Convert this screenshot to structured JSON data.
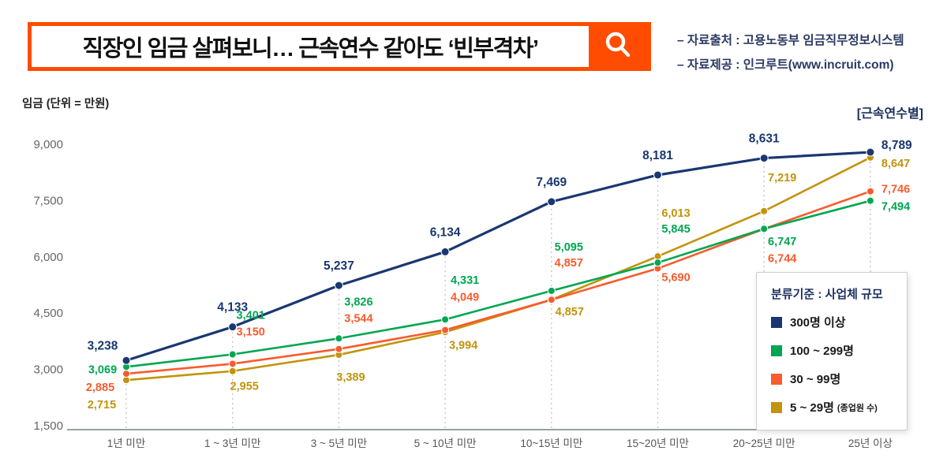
{
  "header": {
    "title": "직장인 임금 살펴보니… 근속연수 같아도 ‘빈부격차’",
    "accent_color": "#ff4c00",
    "sources": {
      "line1": "– 자료출처 : 고용노동부 임금직무정보시스템",
      "line2": "– 자료제공 : 인크루트(www.incruit.com)"
    }
  },
  "chart": {
    "y_axis_label": "임금 (단위 = 만원)",
    "group_label": "[근속연수별]",
    "legend": {
      "title": "분류기준 : 사업체 규모",
      "items": [
        {
          "label": "300명 이상",
          "color": "#193771"
        },
        {
          "label": "100 ~ 299명",
          "color": "#00a651"
        },
        {
          "label": "30 ~ 99명",
          "color": "#f85b2e"
        },
        {
          "label": "5 ~ 29명",
          "suffix": "(종업원 수)",
          "color": "#c2930c"
        }
      ]
    }
  },
  "chart_data": {
    "type": "line",
    "title": "직장인 임금 살펴보니… 근속연수 같아도 ‘빈부격차’",
    "xlabel": "근속연수",
    "ylabel": "임금 (단위 = 만원)",
    "ylim": [
      1500,
      9000
    ],
    "yticks": [
      1500,
      3000,
      4500,
      6000,
      7500,
      9000
    ],
    "grid": false,
    "legend_position": "right-bottom",
    "categories": [
      "1년 미만",
      "1 ~ 3년 미만",
      "3 ~ 5년 미만",
      "5 ~ 10년 미만",
      "10~15년 미만",
      "15~20년 미만",
      "20~25년 미만",
      "25년 이상"
    ],
    "series": [
      {
        "name": "300명 이상",
        "color": "#193771",
        "values": [
          3238,
          4133,
          5237,
          6134,
          7469,
          8181,
          8631,
          8789
        ]
      },
      {
        "name": "100 ~ 299명",
        "color": "#00a651",
        "values": [
          3069,
          3401,
          3826,
          4331,
          5095,
          5845,
          6747,
          7494
        ]
      },
      {
        "name": "30 ~ 99명",
        "color": "#f85b2e",
        "values": [
          2885,
          3150,
          3544,
          4049,
          4857,
          5690,
          6744,
          7746
        ]
      },
      {
        "name": "5 ~ 29명 (종업원 수)",
        "color": "#c2930c",
        "values": [
          2715,
          2955,
          3389,
          3994,
          4857,
          6013,
          7219,
          8647
        ]
      }
    ]
  }
}
